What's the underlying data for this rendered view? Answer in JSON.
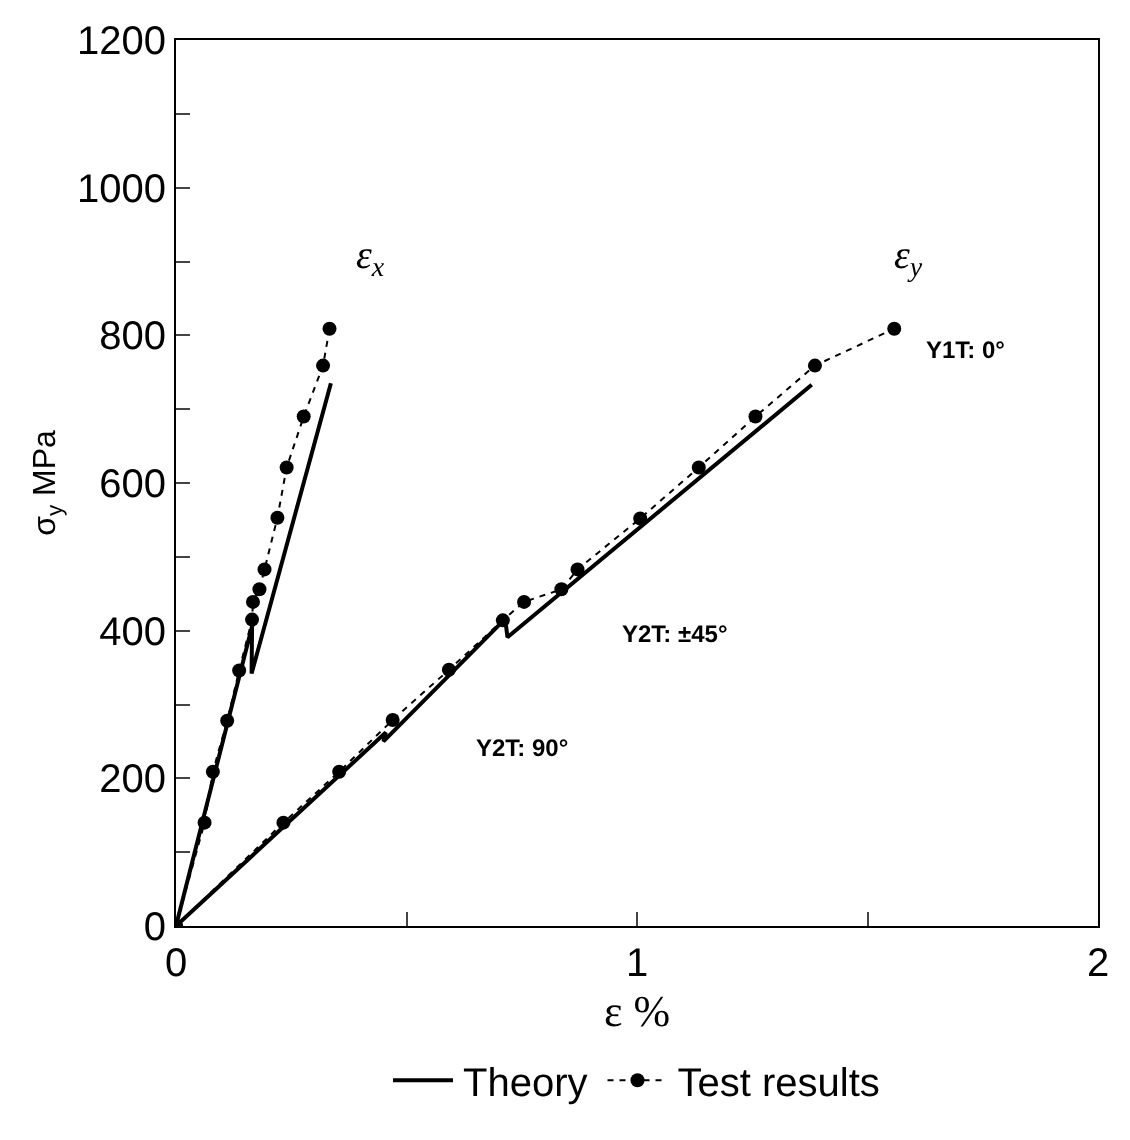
{
  "chart_data": {
    "type": "line",
    "xlabel": "ε %",
    "ylabel": "σ$_{y}$ MPa",
    "xlim": [
      0,
      2
    ],
    "ylim": [
      0,
      1200
    ],
    "xticks": [
      0,
      {
        "value": 0.5,
        "label": null
      },
      1,
      {
        "value": 1.5,
        "label": null
      },
      2
    ],
    "yticks": [
      0,
      {
        "value": 100,
        "label": null
      },
      200,
      {
        "value": 300,
        "label": null
      },
      400,
      {
        "value": 500,
        "label": null
      },
      600,
      {
        "value": 700,
        "label": null
      },
      800,
      {
        "value": 900,
        "label": null
      },
      1000,
      {
        "value": 1100,
        "label": null
      },
      1200
    ],
    "legend": "bottom",
    "series": [
      {
        "name": "Theory",
        "color": "#000000",
        "line_style": "solid",
        "marker": "none",
        "x": [
          0,
          0.165,
          0.164,
          0.336
        ],
        "values": [
          0,
          406,
          342,
          735
        ]
      },
      {
        "color": "#000000",
        "line_style": "solid",
        "marker": "none",
        "x": [
          0,
          0.455,
          0.45,
          0.714,
          0.719,
          1.379
        ],
        "values": [
          0,
          262,
          250,
          416,
          391,
          733
        ]
      },
      {
        "name": "Test results",
        "color": "#000000",
        "line_style": "dotted",
        "marker": "circle",
        "x": [
          0,
          0.062,
          0.08,
          0.111,
          0.137,
          0.165,
          0.167,
          0.181,
          0.192,
          0.22,
          0.24,
          0.277,
          0.319,
          0.333
        ],
        "values": [
          0,
          140,
          209,
          278,
          346,
          415,
          439,
          456,
          483,
          553,
          621,
          690,
          759,
          809
        ]
      },
      {
        "color": "#000000",
        "line_style": "dotted",
        "marker": "circle",
        "x": [
          0,
          0.233,
          0.354,
          0.47,
          0.592,
          0.709,
          0.755,
          0.836,
          0.871,
          1.007,
          1.134,
          1.257,
          1.386,
          1.558
        ],
        "values": [
          0,
          140,
          209,
          279,
          347,
          414,
          439,
          456,
          483,
          552,
          621,
          690,
          759,
          809
        ]
      }
    ],
    "annotations": [
      "ε$_{x}$",
      "ε$_{y}$",
      "Y1T: 0°",
      "Y2T: ±45°",
      "Y2T: 90°"
    ]
  }
}
